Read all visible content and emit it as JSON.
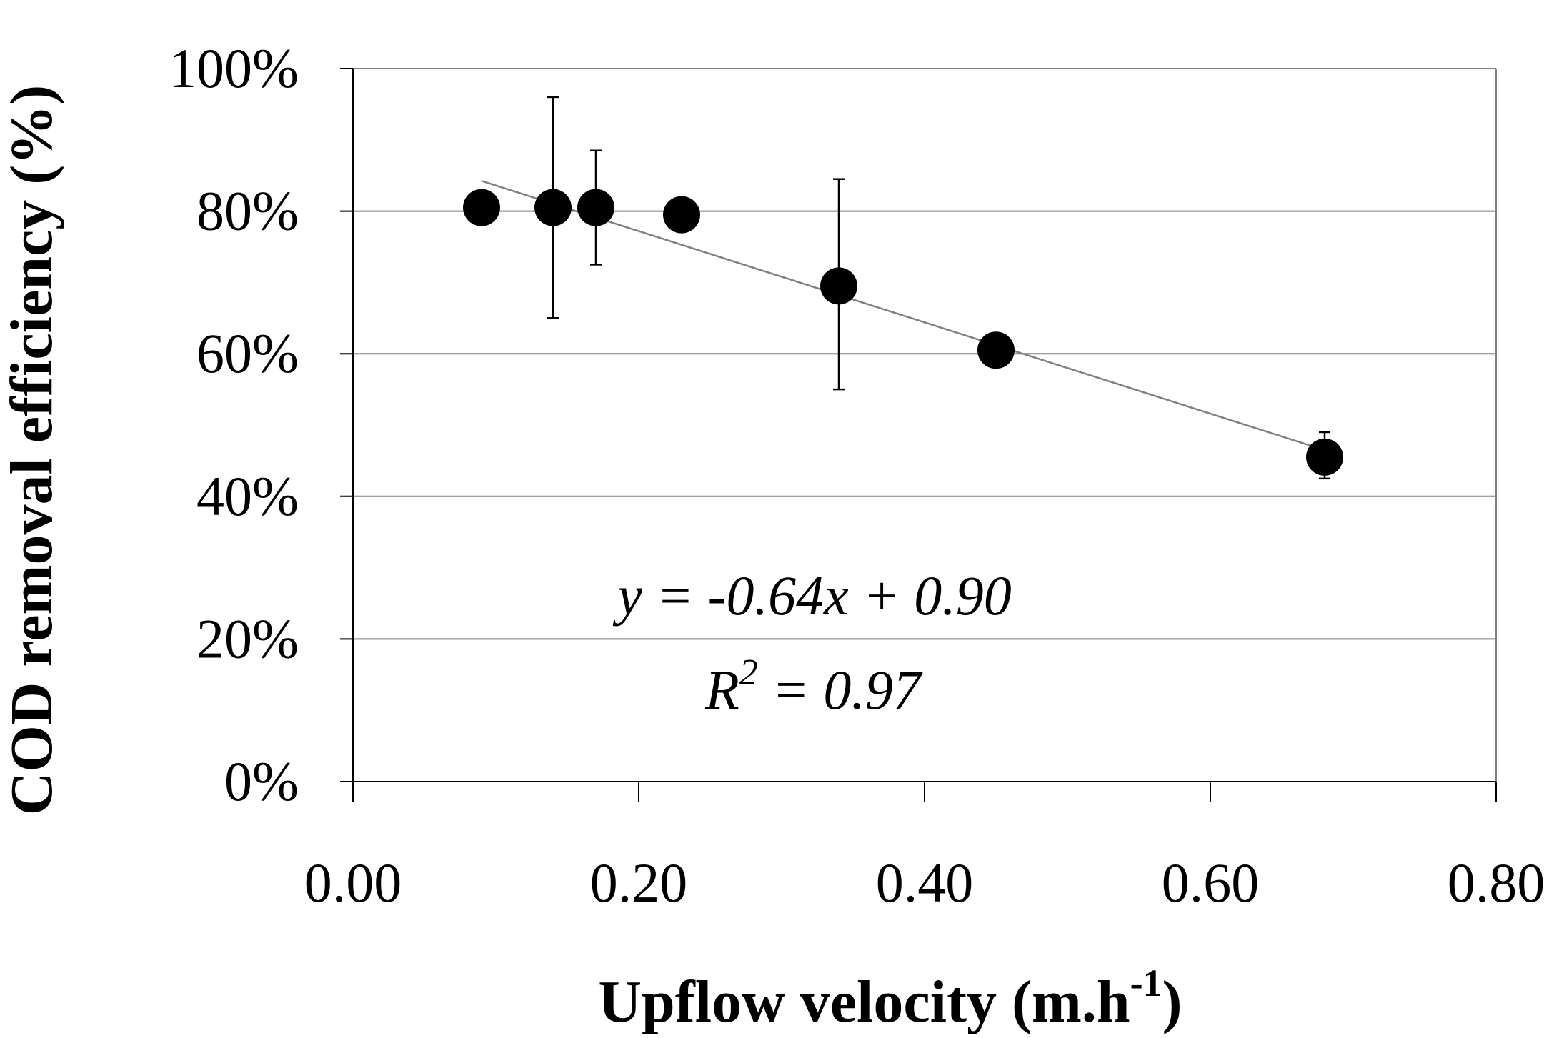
{
  "chart_data": {
    "type": "scatter",
    "title": "",
    "xlabel": "Upflow velocity (m.h",
    "xlabel_sup": "-1",
    "xlabel_close": ")",
    "ylabel": "COD removal efficiency (%)",
    "xlim": [
      0,
      0.8
    ],
    "ylim": [
      0,
      1
    ],
    "x_ticks": [
      0,
      0.2,
      0.4,
      0.6,
      0.8
    ],
    "x_tick_labels": [
      "0.00",
      "0.20",
      "0.40",
      "0.60",
      "0.80"
    ],
    "y_ticks": [
      0,
      0.2,
      0.4,
      0.6,
      0.8,
      1.0
    ],
    "y_tick_labels": [
      "0%",
      "20%",
      "40%",
      "60%",
      "80%",
      "100%"
    ],
    "grid": "horizontal",
    "series": [
      {
        "name": "COD removal efficiency",
        "color": "#000000",
        "points": [
          {
            "x": 0.09,
            "y": 0.805
          },
          {
            "x": 0.14,
            "y": 0.805,
            "err_low": 0.65,
            "err_high": 0.96
          },
          {
            "x": 0.17,
            "y": 0.805,
            "err_low": 0.725,
            "err_high": 0.885
          },
          {
            "x": 0.23,
            "y": 0.795
          },
          {
            "x": 0.34,
            "y": 0.695,
            "err_low": 0.55,
            "err_high": 0.845
          },
          {
            "x": 0.45,
            "y": 0.605
          },
          {
            "x": 0.68,
            "y": 0.455,
            "err_low": 0.425,
            "err_high": 0.49
          }
        ]
      }
    ],
    "trendline": {
      "slope": -0.64,
      "intercept": 0.9,
      "x_start": 0.09,
      "x_end": 0.68,
      "color": "#808080"
    },
    "annotations": {
      "equation": "y = -0.64x + 0.90",
      "r2_prefix": "R",
      "r2_sup": "2",
      "r2_value": " = 0.97"
    }
  }
}
